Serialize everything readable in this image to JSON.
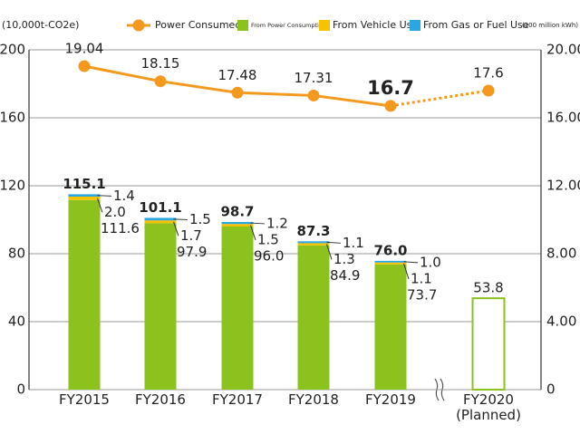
{
  "chart_data": {
    "type": "bar",
    "stacked": true,
    "ylabel": "(10,000t-CO2e)",
    "y2label": "(100 million kWh)",
    "categories": [
      "FY2015",
      "FY2016",
      "FY2017",
      "FY2018",
      "FY2019",
      "FY2020 (Planned)"
    ],
    "planned": [
      false,
      false,
      false,
      false,
      false,
      true
    ],
    "series": [
      {
        "name": "From Power Consumption",
        "type": "bar",
        "color": "#8cc21e",
        "values": [
          111.6,
          97.9,
          96.0,
          84.9,
          73.7,
          53.8
        ],
        "value_labels": [
          "111.6",
          "97.9",
          "96.0",
          "84.9",
          "73.7",
          null
        ]
      },
      {
        "name": "From Vehicle Use",
        "type": "bar",
        "color": "#f6c200",
        "values": [
          2.0,
          1.7,
          1.5,
          1.3,
          1.1,
          null
        ],
        "value_labels": [
          "2.0",
          "1.7",
          "1.5",
          "1.3",
          "1.1",
          null
        ]
      },
      {
        "name": "From Gas or Fuel Use",
        "type": "bar",
        "color": "#2aa7e0",
        "values": [
          1.4,
          1.5,
          1.2,
          1.1,
          1.0,
          null
        ],
        "value_labels": [
          "1.4",
          "1.5",
          "1.2",
          "1.1",
          "1.0",
          null
        ]
      },
      {
        "name": "Power Consumed",
        "type": "line",
        "axis": "y2",
        "color": "#f39a1e",
        "values": [
          19.04,
          18.15,
          17.48,
          17.31,
          16.7,
          17.6
        ]
      }
    ],
    "totals": {
      "values": [
        115.1,
        101.1,
        98.7,
        87.3,
        76.0,
        53.8
      ],
      "value_labels": [
        "115.1",
        "101.1",
        "98.7",
        "87.3",
        "76.0",
        "53.8"
      ]
    },
    "ylim": [
      0,
      200
    ],
    "yticks": [
      0,
      40,
      80,
      120,
      160,
      200
    ],
    "y2lim": [
      0,
      20
    ],
    "y2ticks": [
      0,
      {
        "value": 4,
        "label": "4.00"
      },
      {
        "value": 8,
        "label": "8.00"
      },
      {
        "value": 12,
        "label": "12.00"
      },
      {
        "value": 16,
        "label": "16.00"
      },
      {
        "value": 20,
        "label": "20.00"
      }
    ],
    "grid": true
  }
}
